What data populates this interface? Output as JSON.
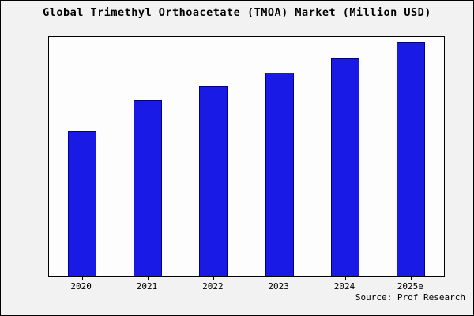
{
  "window": {
    "background": "#f2f2f2",
    "border_color": "#000000"
  },
  "chart_data": {
    "type": "bar",
    "title": "Global Trimethyl Orthoacetate (TMOA) Market (Million USD)",
    "categories": [
      "2020",
      "2021",
      "2022",
      "2023",
      "2024",
      "2025e"
    ],
    "values": [
      62,
      75,
      81,
      87,
      93,
      100
    ],
    "xlabel": "",
    "ylabel": "",
    "ylim": [
      0,
      102
    ],
    "grid": false,
    "legend": false,
    "y_tick_labels_visible": false,
    "bar_fill": "#1a1ae6",
    "bar_edge": "#00008b"
  },
  "source": {
    "label": "Source: Prof Research"
  }
}
